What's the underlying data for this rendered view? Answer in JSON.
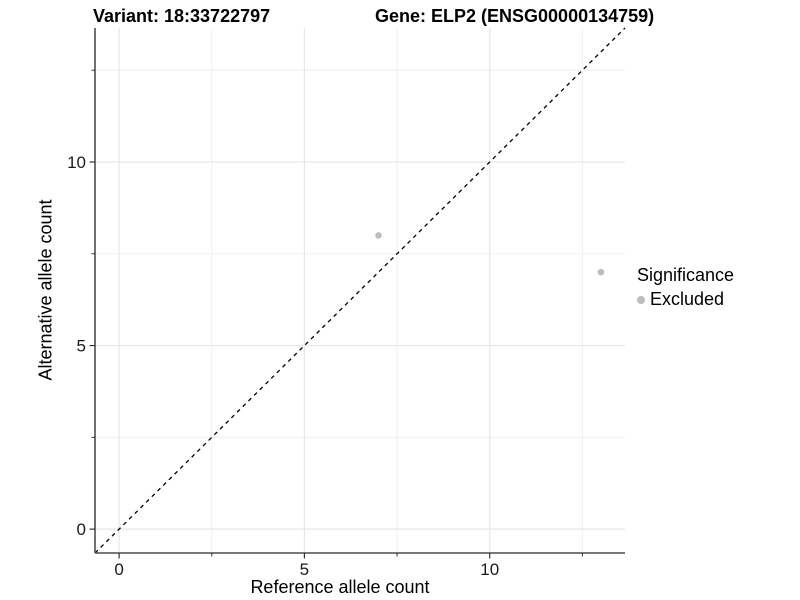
{
  "titles": {
    "variant": "Variant: 18:33722797",
    "gene": "Gene: ELP2 (ENSG00000134759)"
  },
  "axes": {
    "x_label": "Reference allele count",
    "y_label": "Alternative allele count"
  },
  "legend": {
    "title": "Significance",
    "items": [
      {
        "label": "Excluded",
        "color": "#bdbdbd"
      }
    ]
  },
  "chart_data": {
    "type": "scatter",
    "title": "Variant: 18:33722797 — Gene: ELP2 (ENSG00000134759)",
    "xlabel": "Reference allele count",
    "ylabel": "Alternative allele count",
    "x_range": [
      -0.65,
      13.65
    ],
    "y_range": [
      -0.65,
      13.65
    ],
    "x_ticks": {
      "major": [
        0,
        5,
        10
      ],
      "labels": [
        "0",
        "5",
        "10"
      ],
      "minor": [
        2.5,
        7.5,
        12.5
      ]
    },
    "y_ticks": {
      "major": [
        0,
        5,
        10
      ],
      "labels": [
        "0",
        "5",
        "10"
      ],
      "minor": [
        2.5,
        7.5,
        12.5
      ]
    },
    "grid": true,
    "legend_position": "right",
    "series": [
      {
        "name": "Excluded",
        "color": "#bdbdbd",
        "points": [
          {
            "x": 7,
            "y": 8
          },
          {
            "x": 13,
            "y": 7
          }
        ]
      }
    ],
    "reference_line": {
      "type": "identity",
      "slope": 1,
      "intercept": 0,
      "style": "dashed",
      "color": "#000000"
    },
    "colors": {
      "grid_major": "#e6e6e6",
      "grid_minor": "#f0f0f0",
      "axis_line": "#4d4d4d",
      "tick_mark": "#333333",
      "tick_label": "#1a1a1a",
      "point": "#bdbdbd"
    }
  }
}
